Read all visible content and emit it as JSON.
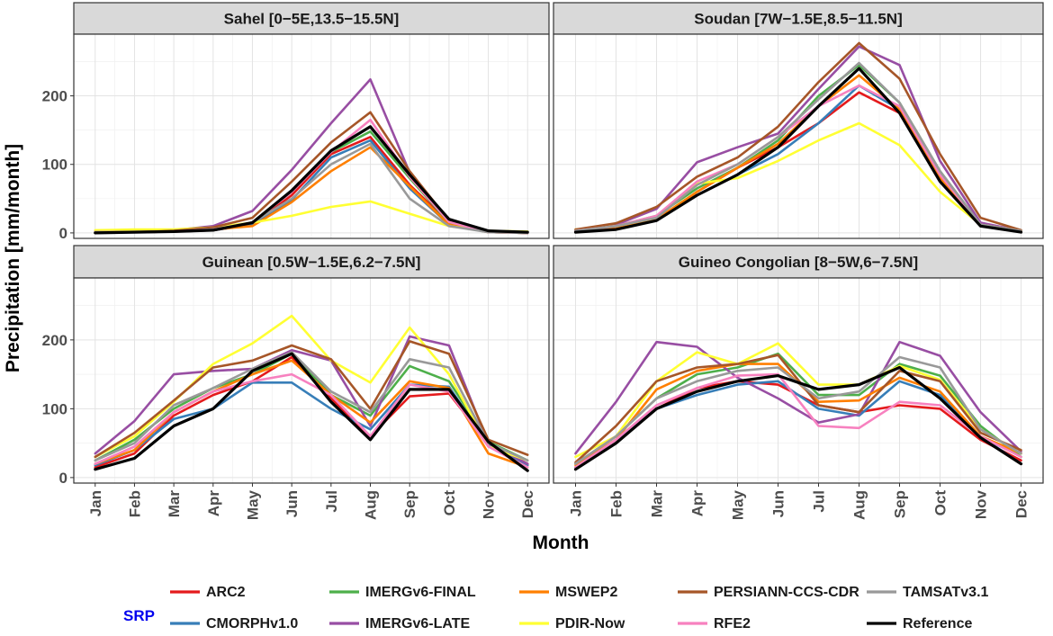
{
  "chart_data": {
    "type": "line",
    "xlabel": "Month",
    "ylabel": "Precipitation [mm/month]",
    "ylim": [
      -8,
      290
    ],
    "yticks": [
      0,
      100,
      200
    ],
    "categories": [
      "Jan",
      "Feb",
      "Mar",
      "Apr",
      "May",
      "Jun",
      "Jul",
      "Aug",
      "Sep",
      "Oct",
      "Nov",
      "Dec"
    ],
    "legend_title": "SRP",
    "series_colors": {
      "ARC2": "#e41a1c",
      "CMORPHv1.0": "#377eb8",
      "IMERGv6-FINAL": "#4daf4a",
      "IMERGv6-LATE": "#984ea3",
      "MSWEP2": "#ff7f00",
      "PDIR-Now": "#ffff33",
      "PERSIANN-CCS-CDR": "#a65628",
      "RFE2": "#f781bf",
      "TAMSATv3.1": "#999999",
      "Reference": "#000000"
    },
    "legend_order": [
      "ARC2",
      "CMORPHv1.0",
      "IMERGv6-FINAL",
      "IMERGv6-LATE",
      "MSWEP2",
      "PDIR-Now",
      "PERSIANN-CCS-CDR",
      "RFE2",
      "TAMSATv3.1",
      "Reference"
    ],
    "panels": [
      {
        "title": "Sahel [0−5E,13.5−15.5N]",
        "series": [
          {
            "name": "ARC2",
            "values": [
              1,
              1,
              2,
              4,
              12,
              55,
              115,
              140,
              70,
              15,
              1,
              0
            ]
          },
          {
            "name": "CMORPHv1.0",
            "values": [
              1,
              1,
              2,
              4,
              12,
              48,
              110,
              135,
              65,
              12,
              1,
              0
            ]
          },
          {
            "name": "IMERGv6-FINAL",
            "values": [
              1,
              1,
              2,
              5,
              15,
              60,
              118,
              148,
              80,
              15,
              1,
              0
            ]
          },
          {
            "name": "IMERGv6-LATE",
            "values": [
              2,
              2,
              4,
              10,
              32,
              92,
              160,
              224,
              88,
              18,
              2,
              0
            ]
          },
          {
            "name": "MSWEP2",
            "values": [
              1,
              1,
              2,
              5,
              10,
              45,
              90,
              125,
              68,
              12,
              1,
              0
            ]
          },
          {
            "name": "PDIR-Now",
            "values": [
              4,
              5,
              5,
              8,
              15,
              25,
              38,
              46,
              28,
              10,
              3,
              2
            ]
          },
          {
            "name": "PERSIANN-CCS-CDR",
            "values": [
              1,
              1,
              3,
              8,
              22,
              75,
              132,
              176,
              90,
              18,
              2,
              0
            ]
          },
          {
            "name": "RFE2",
            "values": [
              1,
              1,
              2,
              5,
              15,
              60,
              118,
              165,
              82,
              16,
              1,
              0
            ]
          },
          {
            "name": "TAMSATv3.1",
            "values": [
              1,
              1,
              2,
              5,
              15,
              50,
              100,
              130,
              50,
              10,
              1,
              0
            ]
          },
          {
            "name": "Reference",
            "values": [
              0,
              1,
              2,
              4,
              15,
              62,
              120,
              155,
              85,
              20,
              3,
              1
            ]
          }
        ]
      },
      {
        "title": "Soudan [7W−1.5E,8.5−11.5N]",
        "series": [
          {
            "name": "ARC2",
            "values": [
              2,
              8,
              18,
              60,
              95,
              125,
              160,
              205,
              175,
              75,
              10,
              2
            ]
          },
          {
            "name": "CMORPHv1.0",
            "values": [
              2,
              8,
              18,
              55,
              85,
              115,
              160,
              215,
              180,
              80,
              10,
              2
            ]
          },
          {
            "name": "IMERGv6-FINAL",
            "values": [
              3,
              10,
              25,
              65,
              95,
              135,
              200,
              245,
              190,
              90,
              12,
              3
            ]
          },
          {
            "name": "IMERGv6-LATE",
            "values": [
              4,
              12,
              35,
              103,
              125,
              145,
              210,
              272,
              245,
              105,
              15,
              3
            ]
          },
          {
            "name": "MSWEP2",
            "values": [
              2,
              8,
              20,
              60,
              95,
              130,
              185,
              230,
              180,
              80,
              10,
              2
            ]
          },
          {
            "name": "PDIR-Now",
            "values": [
              5,
              10,
              22,
              72,
              80,
              105,
              135,
              160,
              128,
              60,
              12,
              3
            ]
          },
          {
            "name": "PERSIANN-CCS-CDR",
            "values": [
              5,
              14,
              38,
              82,
              110,
              155,
              220,
              277,
              225,
              115,
              22,
              4
            ]
          },
          {
            "name": "RFE2",
            "values": [
              3,
              10,
              25,
              75,
              100,
              140,
              185,
              215,
              185,
              85,
              12,
              2
            ]
          },
          {
            "name": "TAMSATv3.1",
            "values": [
              3,
              10,
              22,
              70,
              100,
              140,
              195,
              248,
              190,
              90,
              12,
              3
            ]
          },
          {
            "name": "Reference",
            "values": [
              1,
              5,
              18,
              55,
              85,
              125,
              185,
              240,
              175,
              75,
              10,
              1
            ]
          }
        ]
      },
      {
        "title": "Guinean [0.5W−1.5E,6.2−7.5N]",
        "series": [
          {
            "name": "ARC2",
            "values": [
              15,
              35,
              90,
              120,
              140,
              175,
              115,
              60,
              118,
              122,
              50,
              20
            ]
          },
          {
            "name": "CMORPHv1.0",
            "values": [
              18,
              40,
              85,
              100,
              138,
              138,
              100,
              70,
              135,
              132,
              48,
              18
            ]
          },
          {
            "name": "IMERGv6-FINAL",
            "values": [
              25,
              55,
              100,
              130,
              150,
              180,
              120,
              90,
              162,
              140,
              52,
              25
            ]
          },
          {
            "name": "IMERGv6-LATE",
            "values": [
              35,
              82,
              150,
              155,
              158,
              185,
              170,
              75,
              205,
              192,
              50,
              20
            ]
          },
          {
            "name": "MSWEP2",
            "values": [
              20,
              40,
              95,
              125,
              150,
              170,
              120,
              80,
              140,
              130,
              35,
              15
            ]
          },
          {
            "name": "PDIR-Now",
            "values": [
              30,
              60,
              110,
              165,
              195,
              235,
              170,
              138,
              218,
              150,
              45,
              25
            ]
          },
          {
            "name": "PERSIANN-CCS-CDR",
            "values": [
              30,
              65,
              112,
              160,
              170,
              192,
              172,
              100,
              198,
              180,
              55,
              33
            ]
          },
          {
            "name": "RFE2",
            "values": [
              20,
              45,
              95,
              125,
              140,
              150,
              120,
              60,
              135,
              125,
              45,
              15
            ]
          },
          {
            "name": "TAMSATv3.1",
            "values": [
              25,
              50,
              105,
              130,
              158,
              182,
              125,
              95,
              172,
              160,
              50,
              25
            ]
          },
          {
            "name": "Reference",
            "values": [
              12,
              28,
              75,
              100,
              155,
              180,
              110,
              55,
              128,
              128,
              52,
              10
            ]
          }
        ]
      },
      {
        "title": "Guineo Congolian [8−5W,6−7.5N]",
        "series": [
          {
            "name": "ARC2",
            "values": [
              15,
              55,
              100,
              130,
              140,
              135,
              105,
              95,
              105,
              100,
              55,
              25
            ]
          },
          {
            "name": "CMORPHv1.0",
            "values": [
              15,
              55,
              100,
              120,
              135,
              140,
              100,
              90,
              140,
              120,
              60,
              20
            ]
          },
          {
            "name": "IMERGv6-FINAL",
            "values": [
              20,
              60,
              115,
              150,
              160,
              180,
              120,
              120,
              165,
              148,
              75,
              30
            ]
          },
          {
            "name": "IMERGv6-LATE",
            "values": [
              35,
              110,
              197,
              190,
              145,
              115,
              80,
              92,
              197,
              177,
              95,
              38
            ]
          },
          {
            "name": "MSWEP2",
            "values": [
              18,
              55,
              128,
              155,
              165,
              165,
              110,
              112,
              145,
              125,
              60,
              35
            ]
          },
          {
            "name": "PDIR-Now",
            "values": [
              30,
              60,
              140,
              182,
              165,
              195,
              135,
              135,
              162,
              142,
              70,
              35
            ]
          },
          {
            "name": "PERSIANN-CCS-CDR",
            "values": [
              22,
              75,
              140,
              160,
              165,
              178,
              105,
              95,
              155,
              140,
              65,
              40
            ]
          },
          {
            "name": "RFE2",
            "values": [
              15,
              55,
              105,
              130,
              148,
              150,
              75,
              72,
              110,
              105,
              60,
              30
            ]
          },
          {
            "name": "TAMSATv3.1",
            "values": [
              20,
              60,
              115,
              140,
              155,
              160,
              115,
              125,
              175,
              160,
              70,
              35
            ]
          },
          {
            "name": "Reference",
            "values": [
              12,
              50,
              100,
              125,
              140,
              148,
              128,
              135,
              160,
              115,
              58,
              20
            ]
          }
        ]
      }
    ]
  }
}
